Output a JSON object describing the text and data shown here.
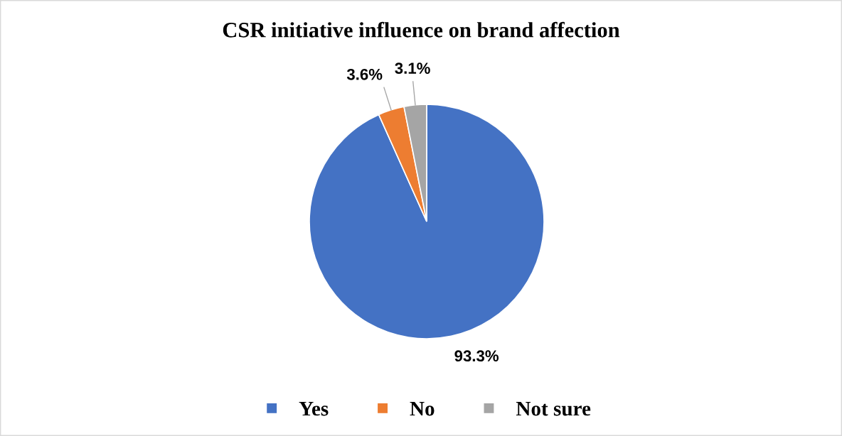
{
  "chart_data": {
    "type": "pie",
    "title": "CSR initiative influence on brand affection",
    "categories": [
      "Yes",
      "No",
      "Not sure"
    ],
    "values": [
      93.3,
      3.6,
      3.1
    ],
    "colors": [
      "#4472c4",
      "#ed7d31",
      "#a5a5a5"
    ],
    "value_labels": [
      "93.3%",
      "3.6%",
      "3.1%"
    ],
    "legend": "bottom"
  }
}
